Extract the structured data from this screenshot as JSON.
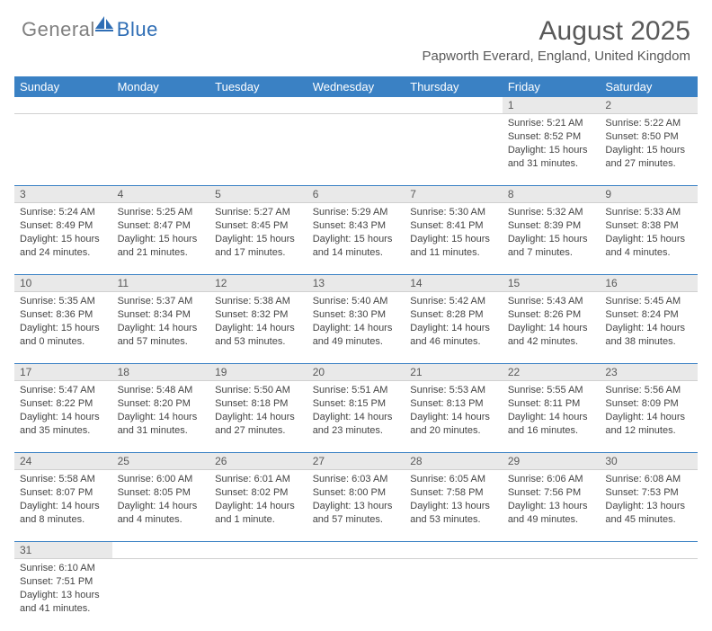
{
  "logo": {
    "text1": "General",
    "text2": "Blue"
  },
  "title": "August 2025",
  "subtitle": "Papworth Everard, England, United Kingdom",
  "colors": {
    "header_bg": "#3a81c4",
    "header_text": "#ffffff",
    "daynum_bg": "#e9e9e9",
    "border": "#3a81c4",
    "title_color": "#595959"
  },
  "weekdays": [
    "Sunday",
    "Monday",
    "Tuesday",
    "Wednesday",
    "Thursday",
    "Friday",
    "Saturday"
  ],
  "weeks": [
    {
      "nums": [
        "",
        "",
        "",
        "",
        "",
        "1",
        "2"
      ],
      "cells": [
        "",
        "",
        "",
        "",
        "",
        "Sunrise: 5:21 AM\nSunset: 8:52 PM\nDaylight: 15 hours and 31 minutes.",
        "Sunrise: 5:22 AM\nSunset: 8:50 PM\nDaylight: 15 hours and 27 minutes."
      ]
    },
    {
      "nums": [
        "3",
        "4",
        "5",
        "6",
        "7",
        "8",
        "9"
      ],
      "cells": [
        "Sunrise: 5:24 AM\nSunset: 8:49 PM\nDaylight: 15 hours and 24 minutes.",
        "Sunrise: 5:25 AM\nSunset: 8:47 PM\nDaylight: 15 hours and 21 minutes.",
        "Sunrise: 5:27 AM\nSunset: 8:45 PM\nDaylight: 15 hours and 17 minutes.",
        "Sunrise: 5:29 AM\nSunset: 8:43 PM\nDaylight: 15 hours and 14 minutes.",
        "Sunrise: 5:30 AM\nSunset: 8:41 PM\nDaylight: 15 hours and 11 minutes.",
        "Sunrise: 5:32 AM\nSunset: 8:39 PM\nDaylight: 15 hours and 7 minutes.",
        "Sunrise: 5:33 AM\nSunset: 8:38 PM\nDaylight: 15 hours and 4 minutes."
      ]
    },
    {
      "nums": [
        "10",
        "11",
        "12",
        "13",
        "14",
        "15",
        "16"
      ],
      "cells": [
        "Sunrise: 5:35 AM\nSunset: 8:36 PM\nDaylight: 15 hours and 0 minutes.",
        "Sunrise: 5:37 AM\nSunset: 8:34 PM\nDaylight: 14 hours and 57 minutes.",
        "Sunrise: 5:38 AM\nSunset: 8:32 PM\nDaylight: 14 hours and 53 minutes.",
        "Sunrise: 5:40 AM\nSunset: 8:30 PM\nDaylight: 14 hours and 49 minutes.",
        "Sunrise: 5:42 AM\nSunset: 8:28 PM\nDaylight: 14 hours and 46 minutes.",
        "Sunrise: 5:43 AM\nSunset: 8:26 PM\nDaylight: 14 hours and 42 minutes.",
        "Sunrise: 5:45 AM\nSunset: 8:24 PM\nDaylight: 14 hours and 38 minutes."
      ]
    },
    {
      "nums": [
        "17",
        "18",
        "19",
        "20",
        "21",
        "22",
        "23"
      ],
      "cells": [
        "Sunrise: 5:47 AM\nSunset: 8:22 PM\nDaylight: 14 hours and 35 minutes.",
        "Sunrise: 5:48 AM\nSunset: 8:20 PM\nDaylight: 14 hours and 31 minutes.",
        "Sunrise: 5:50 AM\nSunset: 8:18 PM\nDaylight: 14 hours and 27 minutes.",
        "Sunrise: 5:51 AM\nSunset: 8:15 PM\nDaylight: 14 hours and 23 minutes.",
        "Sunrise: 5:53 AM\nSunset: 8:13 PM\nDaylight: 14 hours and 20 minutes.",
        "Sunrise: 5:55 AM\nSunset: 8:11 PM\nDaylight: 14 hours and 16 minutes.",
        "Sunrise: 5:56 AM\nSunset: 8:09 PM\nDaylight: 14 hours and 12 minutes."
      ]
    },
    {
      "nums": [
        "24",
        "25",
        "26",
        "27",
        "28",
        "29",
        "30"
      ],
      "cells": [
        "Sunrise: 5:58 AM\nSunset: 8:07 PM\nDaylight: 14 hours and 8 minutes.",
        "Sunrise: 6:00 AM\nSunset: 8:05 PM\nDaylight: 14 hours and 4 minutes.",
        "Sunrise: 6:01 AM\nSunset: 8:02 PM\nDaylight: 14 hours and 1 minute.",
        "Sunrise: 6:03 AM\nSunset: 8:00 PM\nDaylight: 13 hours and 57 minutes.",
        "Sunrise: 6:05 AM\nSunset: 7:58 PM\nDaylight: 13 hours and 53 minutes.",
        "Sunrise: 6:06 AM\nSunset: 7:56 PM\nDaylight: 13 hours and 49 minutes.",
        "Sunrise: 6:08 AM\nSunset: 7:53 PM\nDaylight: 13 hours and 45 minutes."
      ]
    },
    {
      "nums": [
        "31",
        "",
        "",
        "",
        "",
        "",
        ""
      ],
      "cells": [
        "Sunrise: 6:10 AM\nSunset: 7:51 PM\nDaylight: 13 hours and 41 minutes.",
        "",
        "",
        "",
        "",
        "",
        ""
      ]
    }
  ]
}
